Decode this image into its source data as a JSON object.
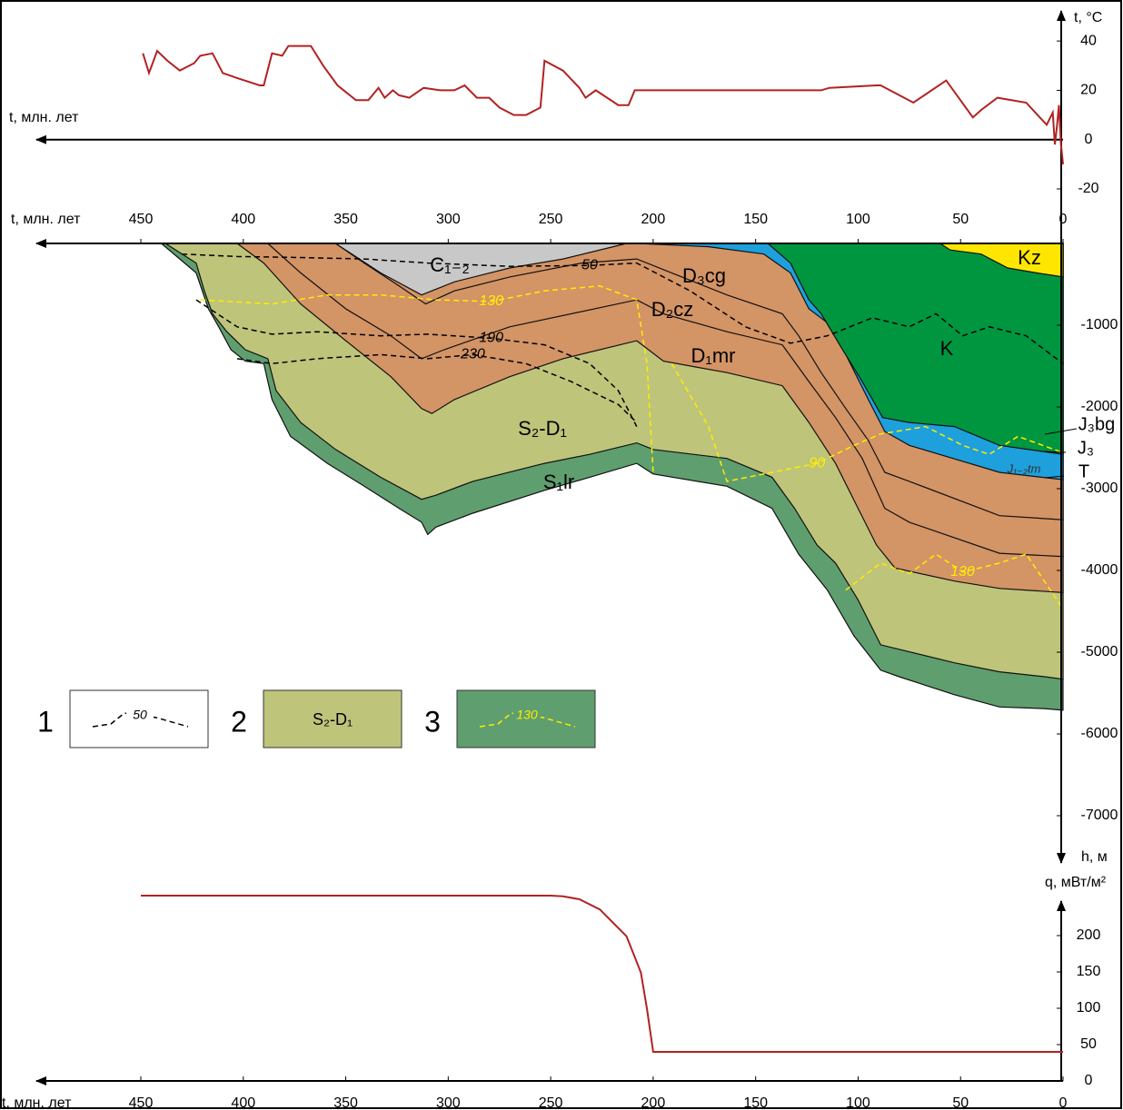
{
  "chart_data": [
    {
      "type": "line",
      "xlabel": "t, млн. лет",
      "ylabel": "t, °C",
      "color": "#b22222",
      "xlim": [
        450,
        0
      ],
      "ylim": [
        -20,
        50
      ],
      "yticks": [
        -20,
        0,
        20,
        40
      ],
      "x": [
        449,
        446,
        442,
        437,
        431,
        424,
        421,
        415,
        410,
        403,
        392,
        390,
        386,
        381,
        378,
        367,
        361,
        354,
        345,
        339,
        334,
        331,
        327,
        324,
        319,
        312,
        304,
        297,
        292,
        286,
        280,
        275,
        268,
        262,
        255,
        253,
        244,
        236,
        233,
        228,
        217,
        212,
        209,
        118,
        114,
        91,
        89,
        73,
        57,
        44,
        40,
        32,
        18,
        8,
        5,
        4,
        3,
        2,
        1,
        0
      ],
      "values": [
        35,
        27,
        36,
        32,
        28,
        31,
        34,
        35,
        27,
        25,
        22,
        22,
        35,
        34,
        38,
        38,
        30,
        22,
        16,
        16,
        21,
        17,
        20,
        18,
        17,
        21,
        20,
        20,
        22,
        17,
        17,
        13,
        10,
        10,
        13,
        32,
        28,
        21,
        17,
        20,
        14,
        14,
        20,
        20,
        21,
        22,
        22,
        15,
        24,
        9,
        12,
        17,
        15,
        6,
        11,
        -2,
        5,
        14,
        -2,
        -10
      ]
    },
    {
      "type": "burial-history",
      "xlabel": "t, млн. лет",
      "ylabel": "h, м",
      "xlim": [
        450,
        0
      ],
      "ylim": [
        -7600,
        0
      ],
      "xticks": [
        450,
        400,
        350,
        300,
        250,
        200,
        150,
        100,
        50,
        0
      ],
      "yticks": [
        -1000,
        -2000,
        -3000,
        -4000,
        -5000,
        -6000,
        -7000
      ],
      "units": [
        {
          "name": "S₁lr",
          "color": "#5f9e6e",
          "x": [
            440,
            423,
            417,
            412,
            406,
            399,
            390,
            386,
            377,
            359,
            341,
            324,
            313,
            310,
            306,
            288,
            253,
            231,
            208,
            200,
            164,
            142,
            129,
            115,
            102,
            89,
            80,
            53,
            31,
            9,
            0
          ],
          "values": [
            0,
            -360,
            -800,
            -1020,
            -1300,
            -1440,
            -1470,
            -1910,
            -2360,
            -2690,
            -2970,
            -3240,
            -3410,
            -3560,
            -3470,
            -3300,
            -3020,
            -2860,
            -2690,
            -2820,
            -2970,
            -3240,
            -3800,
            -4240,
            -4800,
            -5220,
            -5300,
            -5520,
            -5670,
            -5690,
            -5710
          ]
        },
        {
          "name": "S₂-D₁",
          "color": "#bec47a",
          "x": [
            438,
            423,
            419,
            415,
            408,
            399,
            388,
            384,
            372,
            355,
            333,
            313,
            306,
            288,
            253,
            231,
            208,
            200,
            164,
            142,
            131,
            120,
            111,
            100,
            89,
            53,
            31,
            9,
            0
          ],
          "values": [
            0,
            -240,
            -580,
            -860,
            -1080,
            -1300,
            -1410,
            -1800,
            -2190,
            -2520,
            -2860,
            -3130,
            -3080,
            -2910,
            -2690,
            -2580,
            -2440,
            -2520,
            -2630,
            -2860,
            -3240,
            -3690,
            -3910,
            -4360,
            -4910,
            -5130,
            -5240,
            -5300,
            -5330
          ]
        },
        {
          "name": "D₁mr",
          "color": "#d39466",
          "x": [
            403,
            390,
            372,
            350,
            328,
            313,
            308,
            297,
            270,
            244,
            208,
            195,
            164,
            137,
            124,
            111,
            100,
            91,
            82,
            53,
            31,
            0
          ],
          "values": [
            0,
            -240,
            -740,
            -1190,
            -1630,
            -2020,
            -2080,
            -1910,
            -1630,
            -1410,
            -1190,
            -1440,
            -1580,
            -1740,
            -2190,
            -2690,
            -3240,
            -3690,
            -3970,
            -4130,
            -4220,
            -4270
          ]
        },
        {
          "name": "D₂cz",
          "color": "#d39466",
          "x": [
            388,
            372,
            350,
            328,
            313,
            302,
            270,
            208,
            195,
            164,
            137,
            124,
            111,
            98,
            87,
            75,
            31,
            0
          ],
          "values": [
            0,
            -360,
            -800,
            -1130,
            -1410,
            -1300,
            -1020,
            -690,
            -860,
            -1080,
            -1240,
            -1690,
            -2130,
            -2630,
            -3240,
            -3410,
            -3790,
            -3830
          ]
        },
        {
          "name": "D₃cg",
          "color": "#d39466",
          "x": [
            355,
            341,
            324,
            311,
            297,
            270,
            235,
            208,
            191,
            164,
            137,
            129,
            118,
            106,
            95,
            87,
            75,
            31,
            0
          ],
          "values": [
            0,
            -240,
            -520,
            -740,
            -580,
            -410,
            -240,
            -190,
            -360,
            -630,
            -860,
            -1130,
            -1580,
            -2020,
            -2410,
            -2800,
            -2910,
            -3330,
            -3380
          ]
        },
        {
          "name": "C₁₋₂",
          "color": "#c8c8c8",
          "x": [
            355,
            333,
            313,
            297,
            270,
            244,
            213
          ],
          "values": [
            0,
            -360,
            -630,
            -470,
            -300,
            -190,
            0
          ]
        },
        {
          "name": "J₁₋₂tm",
          "color": "#1ea0dc",
          "x": [
            208,
            173,
            146,
            133,
            124,
            115,
            106,
            95,
            87,
            75,
            31,
            0
          ],
          "values": [
            0,
            -40,
            -130,
            -360,
            -800,
            -970,
            -1360,
            -1910,
            -2300,
            -2470,
            -2800,
            -2890
          ]
        },
        {
          "name": "K",
          "color": "#009640",
          "x": [
            144,
            133,
            124,
            118,
            109,
            98,
            88,
            75,
            53,
            31,
            0
          ],
          "values": [
            0,
            -240,
            -690,
            -860,
            -1240,
            -1690,
            -2130,
            -2190,
            -2240,
            -2470,
            -2580
          ]
        },
        {
          "name": "Kz",
          "color": "#ffe600",
          "x": [
            60,
            55,
            40,
            27,
            13,
            0
          ],
          "values": [
            0,
            -80,
            -130,
            -300,
            -360,
            -410
          ]
        }
      ],
      "isotherms": [
        {
          "name": "50",
          "color": "#000000",
          "x": [
            430,
            403,
            377,
            341,
            310,
            270,
            231,
            208,
            182,
            155,
            133,
            115,
            93,
            75,
            62,
            49,
            36,
            18,
            0
          ],
          "values": [
            -130,
            -160,
            -170,
            -190,
            -240,
            -280,
            -270,
            -240,
            -580,
            -1020,
            -1220,
            -1130,
            -910,
            -1020,
            -860,
            -1130,
            -1020,
            -1130,
            -1470
          ]
        },
        {
          "name": "130",
          "color": "#ffed00",
          "x": [
            421,
            386,
            359,
            333,
            306,
            279,
            253,
            226,
            208,
            203,
            200
          ],
          "values": [
            -690,
            -740,
            -630,
            -630,
            -690,
            -710,
            -580,
            -520,
            -690,
            -1470,
            -2800
          ]
        },
        {
          "name": "190",
          "color": "#000000",
          "x": [
            423,
            403,
            386,
            364,
            333,
            310,
            279,
            253,
            231,
            217,
            208
          ],
          "values": [
            -690,
            -1020,
            -1110,
            -1080,
            -1130,
            -1110,
            -1160,
            -1240,
            -1470,
            -1800,
            -2240
          ]
        },
        {
          "name": "230",
          "color": "#000000",
          "x": [
            403,
            386,
            364,
            333,
            310,
            288,
            262,
            240,
            217,
            208
          ],
          "values": [
            -1410,
            -1470,
            -1410,
            -1360,
            -1410,
            -1360,
            -1470,
            -1690,
            -1970,
            -2190
          ]
        },
        {
          "name": "90",
          "color": "#ffed00",
          "x": [
            191,
            173,
            164,
            142,
            120,
            102,
            89,
            67,
            49,
            36,
            22,
            0
          ],
          "values": [
            -1470,
            -2240,
            -2910,
            -2800,
            -2690,
            -2470,
            -2330,
            -2240,
            -2470,
            -2580,
            -2360,
            -2560
          ]
        },
        {
          "name": "130",
          "color": "#ffed00",
          "x": [
            106,
            89,
            75,
            62,
            49,
            31,
            18,
            0
          ],
          "values": [
            -4240,
            -3910,
            -4040,
            -3800,
            -4020,
            -3910,
            -3800,
            -4470
          ]
        }
      ],
      "annotations": [
        "J₃bg",
        "J₃",
        "T"
      ],
      "legend": [
        {
          "number": "1",
          "label": "50"
        },
        {
          "number": "2",
          "label": "S₂-D₁"
        },
        {
          "number": "3",
          "label": "130"
        }
      ]
    },
    {
      "type": "line",
      "xlabel": "t, млн. лет",
      "ylabel": "q, мВт/м²",
      "color": "#b22222",
      "xlim": [
        450,
        0
      ],
      "ylim": [
        0,
        260
      ],
      "xticks": [
        450,
        400,
        350,
        300,
        250,
        200,
        150,
        100,
        50,
        0
      ],
      "yticks": [
        0,
        50,
        100,
        150,
        200
      ],
      "x": [
        450,
        250,
        244,
        236,
        226,
        213,
        206,
        203,
        201,
        200,
        0
      ],
      "values": [
        255,
        255,
        254,
        250,
        236,
        199,
        149,
        99,
        60,
        40,
        40
      ]
    }
  ]
}
